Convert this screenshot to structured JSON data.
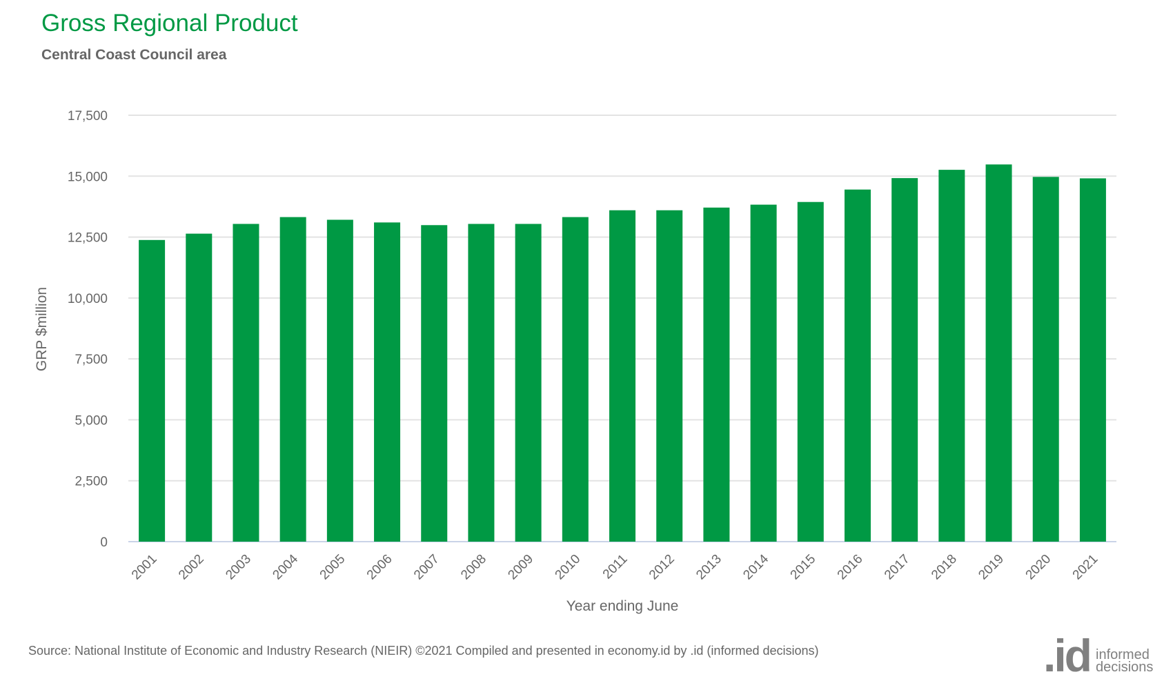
{
  "chart_data": {
    "type": "bar",
    "title": "Gross Regional Product",
    "subtitle": "Central Coast Council area",
    "xlabel": "Year ending June",
    "ylabel": "GRP $million",
    "ylim": [
      0,
      17500
    ],
    "yticks": [
      0,
      2500,
      5000,
      7500,
      10000,
      12500,
      15000,
      17500
    ],
    "ytick_labels": [
      "0",
      "2,500",
      "5,000",
      "7,500",
      "10,000",
      "12,500",
      "15,000",
      "17,500"
    ],
    "grid": true,
    "categories": [
      "2001",
      "2002",
      "2003",
      "2004",
      "2005",
      "2006",
      "2007",
      "2008",
      "2009",
      "2010",
      "2011",
      "2012",
      "2013",
      "2014",
      "2015",
      "2016",
      "2017",
      "2018",
      "2019",
      "2020",
      "2021"
    ],
    "values": [
      12380,
      12640,
      13040,
      13320,
      13210,
      13100,
      12990,
      13040,
      13040,
      13320,
      13600,
      13600,
      13710,
      13830,
      13940,
      14450,
      14920,
      15260,
      15480,
      14970,
      14910
    ],
    "bar_color": "#009944"
  },
  "footer": {
    "source": "Source: National Institute of Economic and Industry Research (NIEIR) ©2021 Compiled and presented in economy.id by .id (informed decisions)",
    "logo_mark": ".id",
    "logo_line1": "informed",
    "logo_line2": "decisions"
  }
}
